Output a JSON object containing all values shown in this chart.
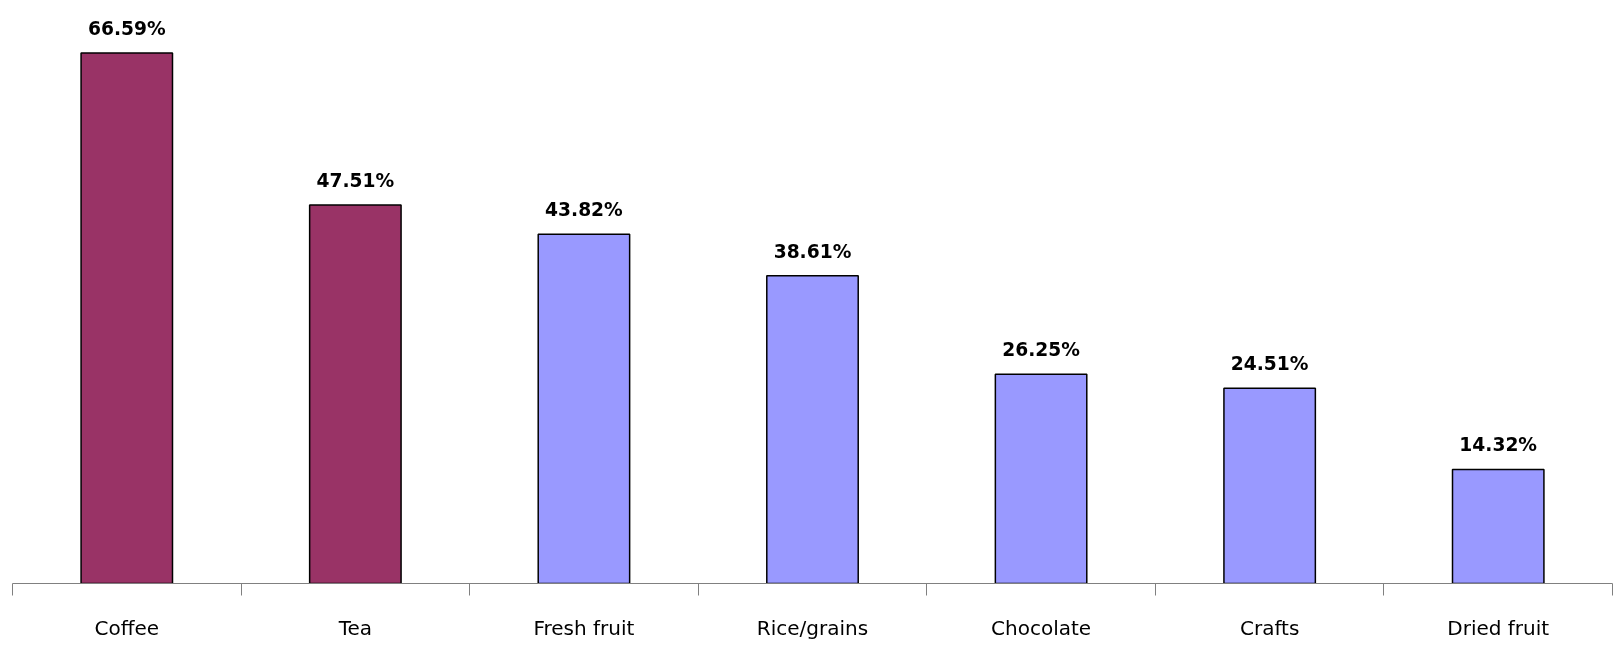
{
  "chart_data": {
    "type": "bar",
    "categories": [
      "Coffee",
      "Tea",
      "Fresh fruit",
      "Rice/grains",
      "Chocolate",
      "Crafts",
      "Dried fruit"
    ],
    "values": [
      66.59,
      47.51,
      43.82,
      38.61,
      26.25,
      24.51,
      14.32
    ],
    "value_labels": [
      "66.59%",
      "47.51%",
      "43.82%",
      "38.61%",
      "26.25%",
      "24.51%",
      "14.32%"
    ],
    "colors": [
      "#993366",
      "#993366",
      "#9999ff",
      "#9999ff",
      "#9999ff",
      "#9999ff",
      "#9999ff"
    ],
    "grid": false
  }
}
